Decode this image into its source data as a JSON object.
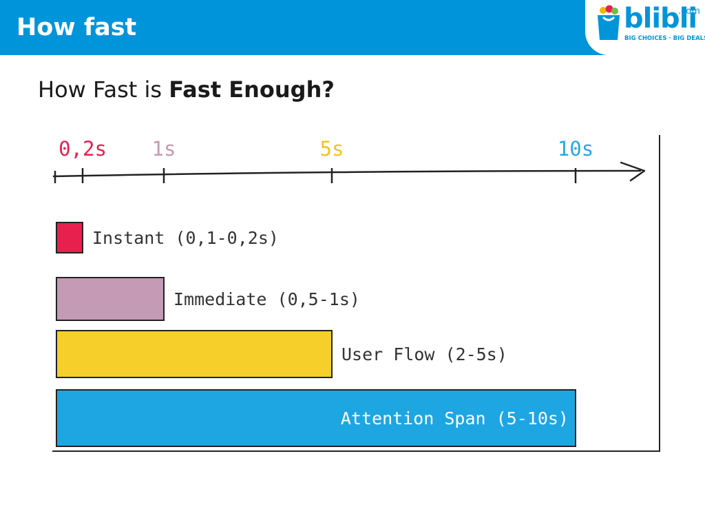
{
  "header": {
    "title": "How fast",
    "logo": {
      "wordmark": "blibli",
      "suffix": ".com",
      "tagline": "BIG CHOICES · BIG DEALS",
      "icon": "shopping-bag-icon"
    }
  },
  "slide": {
    "subtitle_prefix": "How Fast is ",
    "subtitle_emphasis": "Fast Enough?"
  },
  "chart_data": {
    "type": "bar",
    "orientation": "horizontal",
    "x_axis": {
      "ticks": [
        {
          "value": 0.2,
          "label": "0,2s",
          "color": "#e8204e"
        },
        {
          "value": 1,
          "label": "1s",
          "color": "#c49ab4"
        },
        {
          "value": 5,
          "label": "5s",
          "color": "#f3c41f"
        },
        {
          "value": 10,
          "label": "10s",
          "color": "#2aa7e0"
        }
      ]
    },
    "bars": [
      {
        "label": "Instant (0,1-0,2s)",
        "start": 0,
        "end": 0.2,
        "color": "#e8204e",
        "label_position": "outside"
      },
      {
        "label": "Immediate (0,5-1s)",
        "start": 0,
        "end": 1,
        "color": "#c49ab4",
        "label_position": "outside"
      },
      {
        "label": "User Flow (2-5s)",
        "start": 0,
        "end": 5,
        "color": "#f6cf2b",
        "label_position": "outside"
      },
      {
        "label": "Attention Span (5-10s)",
        "start": 0,
        "end": 10,
        "color": "#1ea6e2",
        "label_position": "inside"
      }
    ]
  }
}
